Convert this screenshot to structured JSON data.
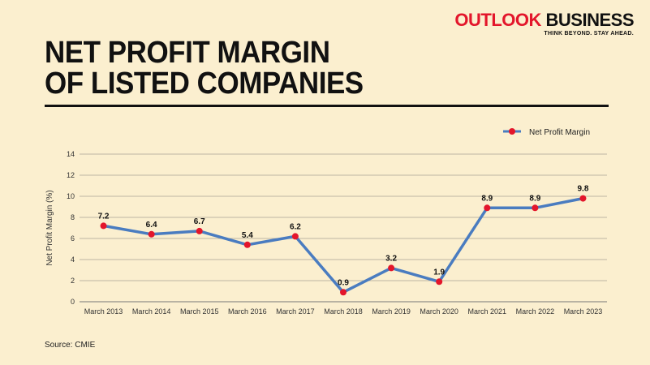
{
  "brand": {
    "name_red": "OUTLOOK",
    "name_black": "BUSINESS",
    "tagline": "THINK BEYOND. STAY AHEAD."
  },
  "title_line1": "NET PROFIT MARGIN",
  "title_line2": "OF LISTED COMPANIES",
  "source": "Source: CMIE",
  "colors": {
    "line": "#4a7cc0",
    "marker": "#e3162b",
    "background": "#fbefcf",
    "grid": "#a8a294"
  },
  "chart_data": {
    "type": "line",
    "categories": [
      "March 2013",
      "March 2014",
      "March 2015",
      "March 2016",
      "March 2017",
      "March 2018",
      "March 2019",
      "March 2020",
      "March 2021",
      "March 2022",
      "March 2023"
    ],
    "series": [
      {
        "name": "Net Profit Margin",
        "values": [
          7.2,
          6.4,
          6.7,
          5.4,
          6.2,
          0.9,
          3.2,
          1.9,
          8.9,
          8.9,
          9.8
        ]
      }
    ],
    "ylabel": "Net Profit Margin (%)",
    "xlabel": "",
    "ylim": [
      0,
      14
    ],
    "yticks": [
      0,
      2,
      4,
      6,
      8,
      10,
      12,
      14
    ],
    "grid": true,
    "legend": "top-right"
  }
}
